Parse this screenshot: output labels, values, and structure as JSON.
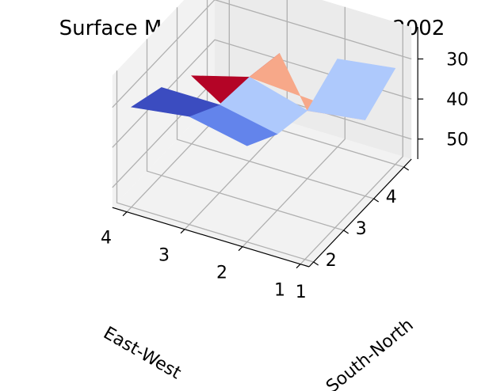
{
  "chart_data": {
    "type": "surface",
    "title": "Surface Map of PDS Votes in DE 2002",
    "xlabel": "East-West",
    "ylabel": "South-North",
    "zlabel": "",
    "x_ticks": [
      "1",
      "2",
      "3",
      "4"
    ],
    "y_ticks": [
      "1",
      "2",
      "3",
      "4"
    ],
    "z_ticks": [
      "30",
      "40",
      "50"
    ],
    "z_inverted": true,
    "zlim": [
      55,
      22
    ],
    "grid": true,
    "colormap": "coolwarm",
    "panes": [
      "left",
      "back",
      "floor"
    ],
    "x": [
      1,
      2,
      3,
      4
    ],
    "y": [
      1,
      2,
      3,
      4
    ],
    "z": [
      [
        null,
        null,
        null,
        null
      ],
      [
        null,
        null,
        null,
        null
      ],
      [
        null,
        null,
        null,
        null
      ],
      [
        null,
        null,
        null,
        null
      ]
    ],
    "patches": [
      {
        "color": "#b40426",
        "corners": [
          [
            4,
            4,
            53
          ],
          [
            3,
            4,
            36
          ],
          [
            3,
            3,
            34
          ],
          [
            4,
            3,
            38
          ]
        ]
      },
      {
        "color": "#f7a889",
        "corners": [
          [
            3,
            4,
            36
          ],
          [
            2,
            3,
            38
          ],
          [
            1,
            3,
            36
          ],
          [
            3,
            3,
            34
          ]
        ]
      },
      {
        "color": "#aec9fc",
        "corners": [
          [
            1,
            3,
            36
          ],
          [
            1,
            4,
            31
          ],
          [
            2,
            4,
            33
          ],
          [
            2,
            3,
            38
          ]
        ]
      },
      {
        "color": "#aec9fc",
        "corners": [
          [
            2,
            3,
            38
          ],
          [
            3,
            3,
            34
          ],
          [
            3,
            2,
            33
          ],
          [
            2,
            2,
            36
          ]
        ]
      },
      {
        "color": "#6384eb",
        "corners": [
          [
            2,
            2,
            36
          ],
          [
            3,
            2,
            33
          ],
          [
            3,
            1,
            28
          ],
          [
            2,
            1,
            31
          ]
        ]
      },
      {
        "color": "#3b4cc0",
        "corners": [
          [
            3,
            2,
            33
          ],
          [
            4,
            2,
            33
          ],
          [
            4,
            1,
            30
          ],
          [
            3,
            1,
            28
          ]
        ]
      }
    ]
  }
}
